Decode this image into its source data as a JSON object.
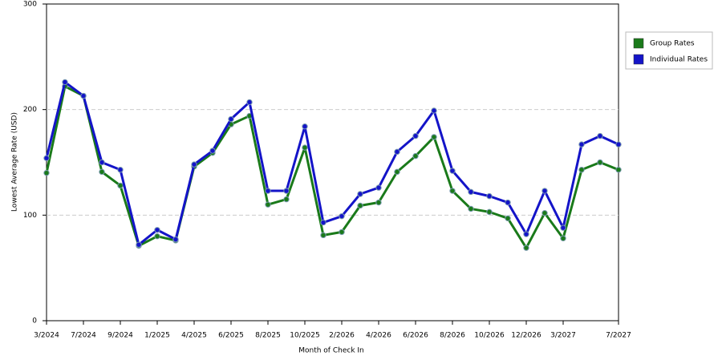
{
  "chart_data": {
    "type": "line",
    "x_label": "Month of Check In",
    "y_label": "Lowest Average Rate (USD)",
    "categories": [
      "3/2024",
      null,
      "7/2024",
      null,
      "9/2024",
      null,
      "1/2025",
      null,
      "4/2025",
      null,
      "6/2025",
      null,
      "8/2025",
      null,
      "10/2025",
      null,
      "2/2026",
      null,
      "4/2026",
      null,
      "6/2026",
      null,
      "8/2026",
      null,
      "10/2026",
      null,
      "12/2026",
      null,
      "3/2027",
      null,
      null,
      "7/2027"
    ],
    "series": [
      {
        "name": "Group Rates",
        "color": "#1a7a1a",
        "values": [
          140,
          222,
          213,
          141,
          128,
          71,
          80,
          76,
          146,
          159,
          186,
          194,
          110,
          115,
          164,
          81,
          84,
          109,
          112,
          141,
          156,
          174,
          123,
          106,
          103,
          97,
          69,
          102,
          78,
          143,
          150,
          143
        ]
      },
      {
        "name": "Individual Rates",
        "color": "#1414c8",
        "values": [
          154,
          226,
          213,
          150,
          143,
          72,
          86,
          77,
          148,
          161,
          191,
          207,
          123,
          123,
          184,
          93,
          99,
          120,
          126,
          160,
          175,
          199,
          142,
          122,
          118,
          112,
          82,
          123,
          88,
          167,
          175,
          167
        ]
      }
    ],
    "ylim": [
      0,
      300
    ],
    "yticks": [
      0,
      100,
      200,
      300
    ],
    "grid": true,
    "legend": "right"
  }
}
